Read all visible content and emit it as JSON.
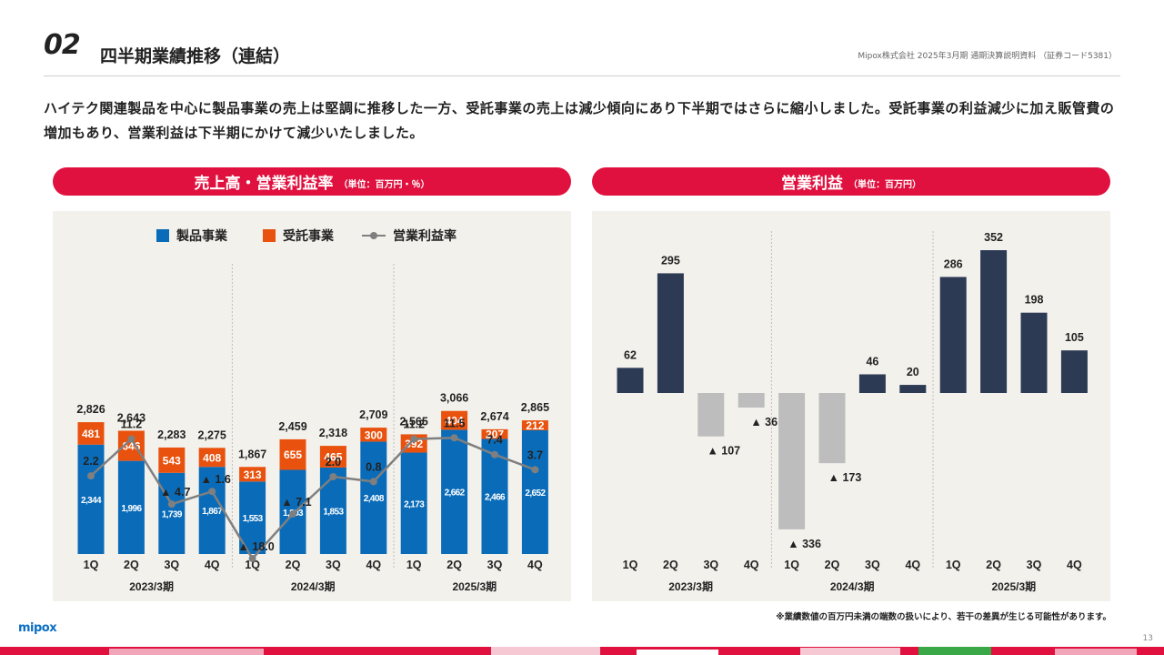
{
  "header": {
    "section_no": "02",
    "title": "四半期業績推移（連結）",
    "company_info": "Mipox株式会社 2025年3月期 通期決算説明資料 （証券コード5381）"
  },
  "lead_text": "ハイテク関連製品を中心に製品事業の売上は堅調に推移した一方、受託事業の売上は減少傾向にあり下半期ではさらに縮小しました。受託事業の利益減少に加え販管費の増加もあり、営業利益は下半期にかけて減少いたしました。",
  "left_panel": {
    "title": "売上高・営業利益率",
    "unit": "（単位：百万円・％）"
  },
  "right_panel": {
    "title": "営業利益",
    "unit": "（単位：百万円）"
  },
  "footnote": "※業績数値の百万円未満の端数の扱いにより、若干の差異が生じる可能性があります。",
  "logo": "mipox",
  "page_number": "13",
  "colors": {
    "product": "#0a6cb9",
    "contract": "#e8520e",
    "margin_line": "#7f7f7f",
    "op_positive": "#2c3a54",
    "op_negative": "#bdbdbd",
    "accent": "#e0113f",
    "panel_bg": "#f3f1ec"
  },
  "chart_data": [
    {
      "type": "bar",
      "stacked": true,
      "categories": [
        "1Q",
        "2Q",
        "3Q",
        "4Q",
        "1Q",
        "2Q",
        "3Q",
        "4Q",
        "1Q",
        "2Q",
        "3Q",
        "4Q"
      ],
      "groups": [
        "2023/3期",
        "2024/3期",
        "2025/3期"
      ],
      "series": [
        {
          "name": "製品事業",
          "values": [
            2344,
            1996,
            1739,
            1867,
            1553,
            1803,
            1853,
            2408,
            2173,
            2662,
            2466,
            2652
          ],
          "labels": [
            "2,344",
            "1,996",
            "1,739",
            "1,867",
            "1,553",
            "1,803",
            "1,853",
            "2,408",
            "2,173",
            "2,662",
            "2,466",
            "2,652"
          ]
        },
        {
          "name": "受託事業",
          "values": [
            481,
            646,
            543,
            408,
            313,
            655,
            465,
            300,
            392,
            404,
            207,
            212
          ],
          "labels": [
            "481",
            "646",
            "543",
            "408",
            "313",
            "655",
            "465",
            "300",
            "392",
            "404",
            "207",
            "212"
          ]
        }
      ],
      "totals": [
        2826,
        2643,
        2283,
        2275,
        1867,
        2459,
        2318,
        2709,
        2565,
        3066,
        2674,
        2865
      ],
      "total_labels": [
        "2,826",
        "2,643",
        "2,283",
        "2,275",
        "1,867",
        "2,459",
        "2,318",
        "2,709",
        "2,565",
        "3,066",
        "2,674",
        "2,865"
      ],
      "line_series": {
        "name": "営業利益率",
        "values": [
          2.2,
          11.2,
          -4.7,
          -1.6,
          -18.0,
          -7.1,
          2.0,
          0.8,
          11.2,
          11.5,
          7.4,
          3.7
        ],
        "labels": [
          "2.2",
          "11.2",
          "▲ 4.7",
          "▲ 1.6",
          "▲ 18.0",
          "▲ 7.1",
          "2.0",
          "0.8",
          "11.2",
          "11.5",
          "7.4",
          "3.7"
        ]
      },
      "legend_position": "top"
    },
    {
      "type": "bar",
      "categories": [
        "1Q",
        "2Q",
        "3Q",
        "4Q",
        "1Q",
        "2Q",
        "3Q",
        "4Q",
        "1Q",
        "2Q",
        "3Q",
        "4Q"
      ],
      "groups": [
        "2023/3期",
        "2024/3期",
        "2025/3期"
      ],
      "series": [
        {
          "name": "営業利益",
          "values": [
            62,
            295,
            -107,
            -36,
            -336,
            -173,
            46,
            20,
            286,
            352,
            198,
            105
          ],
          "labels": [
            "62",
            "295",
            "▲ 107",
            "▲ 36",
            "▲ 336",
            "▲ 173",
            "46",
            "20",
            "286",
            "352",
            "198",
            "105"
          ]
        }
      ]
    }
  ]
}
